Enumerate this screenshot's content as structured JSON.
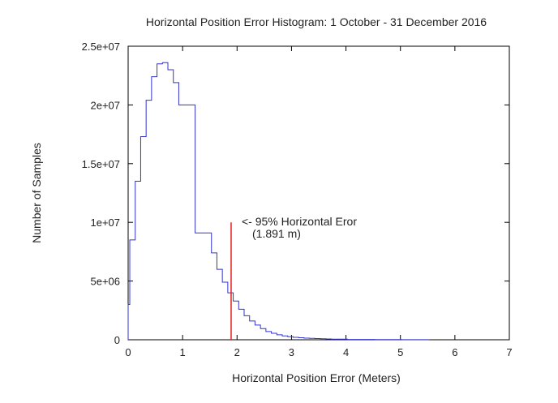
{
  "chart_data": {
    "type": "histogram",
    "title": "Horizontal Position Error Histogram: 1 October - 31 December 2016",
    "xlabel": "Horizontal Position Error (Meters)",
    "ylabel": "Number of Samples",
    "xlim": [
      0,
      7
    ],
    "ylim": [
      0,
      25000000
    ],
    "x_ticks": [
      0,
      1,
      2,
      3,
      4,
      5,
      6,
      7
    ],
    "x_tick_labels": [
      "0",
      "1",
      "2",
      "3",
      "4",
      "5",
      "6",
      "7"
    ],
    "y_ticks": [
      0,
      5000000,
      10000000,
      15000000,
      20000000,
      25000000
    ],
    "y_tick_labels": [
      "0",
      "5e+06",
      "1e+07",
      "1.5e+07",
      "2e+07",
      "2.5e+07"
    ],
    "grid": false,
    "series": [
      {
        "color": "#3333cc",
        "step_x": [
          0,
          0.03,
          0.13,
          0.23,
          0.33,
          0.43,
          0.53,
          0.63,
          0.73,
          0.83,
          0.93,
          1.23,
          1.53,
          1.63,
          1.73,
          1.83,
          1.93,
          2.03,
          2.13,
          2.23,
          2.33,
          2.43,
          2.53,
          2.63,
          2.73,
          2.83,
          2.93,
          3.03,
          3.13,
          3.23,
          3.33,
          3.43,
          3.53,
          3.63,
          3.73,
          4.03,
          4.53,
          5.03,
          5.53
        ],
        "counts": [
          3000000,
          8500000,
          13500000,
          17300000,
          20400000,
          22400000,
          23500000,
          23600000,
          23000000,
          21900000,
          20000000,
          9100000,
          7400000,
          6000000,
          4900000,
          4000000,
          3300000,
          2600000,
          2050000,
          1600000,
          1250000,
          950000,
          700000,
          550000,
          420000,
          330000,
          260000,
          210000,
          170000,
          140000,
          120000,
          100000,
          85000,
          70000,
          50000,
          28000,
          14000,
          7000
        ]
      }
    ],
    "reference_line": {
      "x": 1.891,
      "y": 10000000,
      "color": "#e02020",
      "label_line1": "<- 95% Horizontal Eror",
      "label_line2": "(1.891 m)"
    }
  }
}
